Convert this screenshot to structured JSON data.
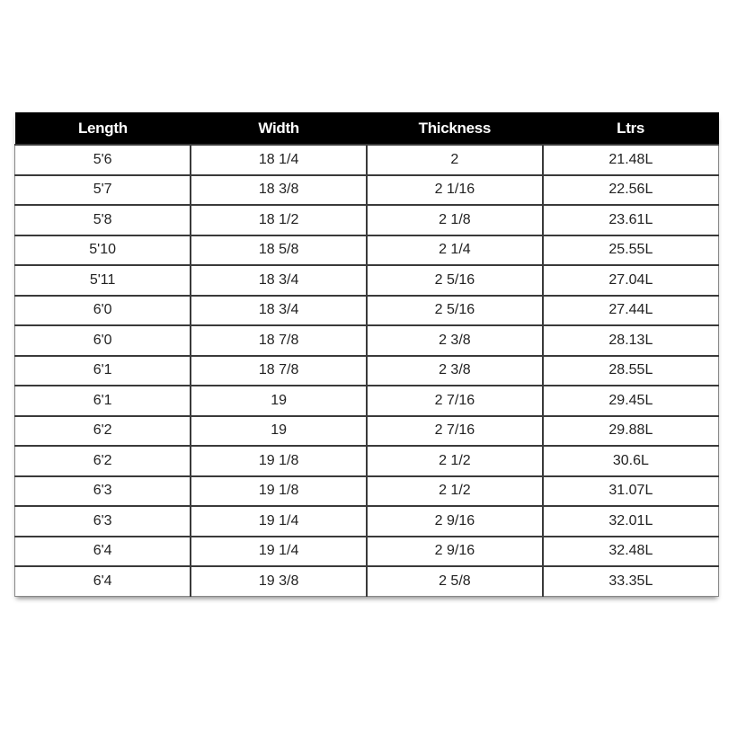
{
  "table": {
    "headers": [
      "Length",
      "Width",
      "Thickness",
      "Ltrs"
    ],
    "rows": [
      [
        "5'6",
        "18 1/4",
        "2",
        "21.48L"
      ],
      [
        "5'7",
        "18 3/8",
        "2 1/16",
        "22.56L"
      ],
      [
        "5'8",
        "18 1/2",
        "2 1/8",
        "23.61L"
      ],
      [
        "5'10",
        "18 5/8",
        "2 1/4",
        "25.55L"
      ],
      [
        "5'11",
        "18 3/4",
        "2 5/16",
        "27.04L"
      ],
      [
        "6'0",
        "18 3/4",
        "2 5/16",
        "27.44L"
      ],
      [
        "6'0",
        "18 7/8",
        "2 3/8",
        "28.13L"
      ],
      [
        "6'1",
        "18 7/8",
        "2 3/8",
        "28.55L"
      ],
      [
        "6'1",
        "19",
        "2 7/16",
        "29.45L"
      ],
      [
        "6'2",
        "19",
        "2 7/16",
        "29.88L"
      ],
      [
        "6'2",
        "19 1/8",
        "2 1/2",
        "30.6L"
      ],
      [
        "6'3",
        "19 1/8",
        "2 1/2",
        "31.07L"
      ],
      [
        "6'3",
        "19 1/4",
        "2 9/16",
        "32.01L"
      ],
      [
        "6'4",
        "19 1/4",
        "2 9/16",
        "32.48L"
      ],
      [
        "6'4",
        "19 3/8",
        "2 5/8",
        "33.35L"
      ]
    ]
  },
  "colors": {
    "header_bg": "#000000",
    "header_text": "#ffffff",
    "grid": "#3a3a3a"
  }
}
